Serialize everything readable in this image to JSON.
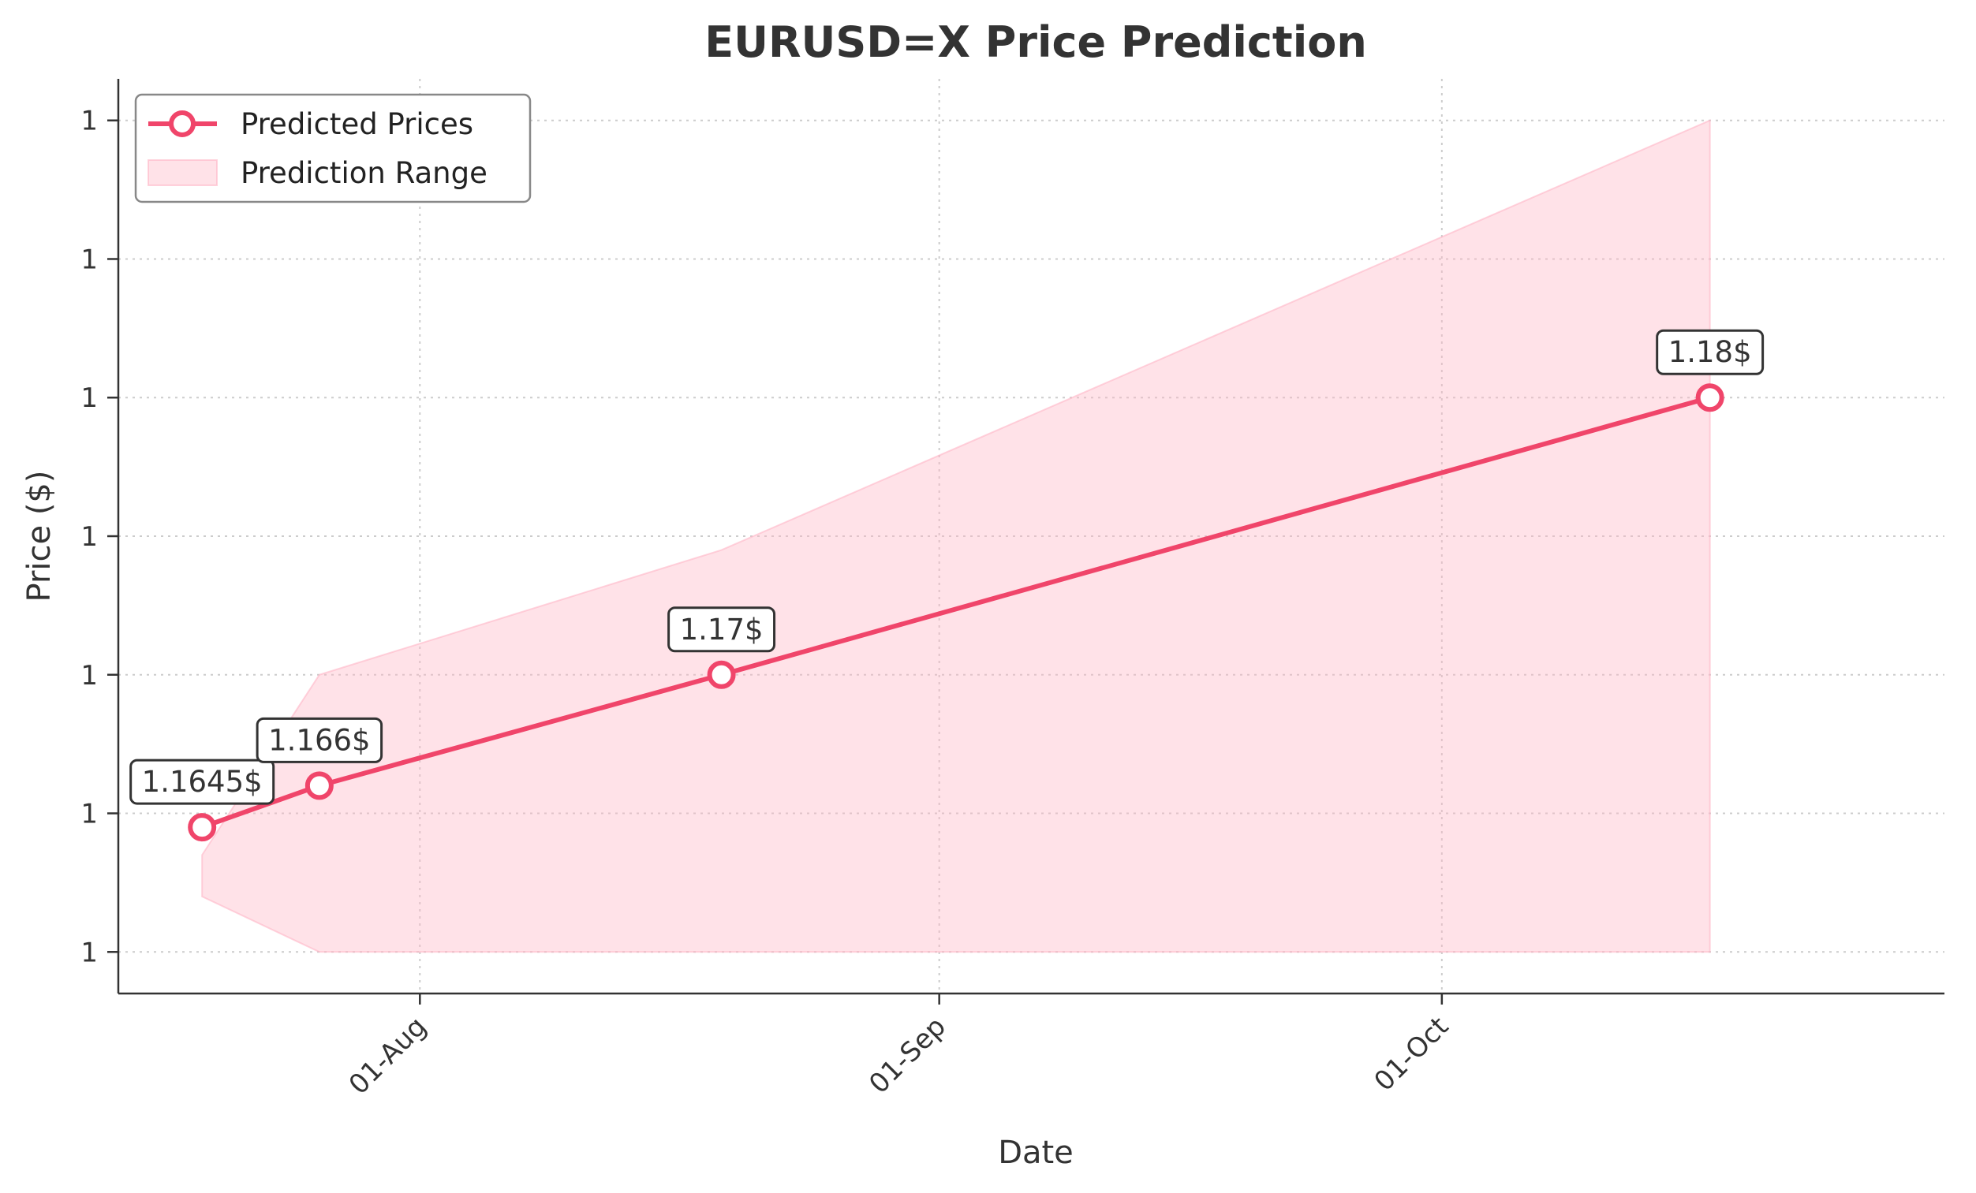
{
  "chart_data": {
    "type": "line",
    "title": "EURUSD=X Price Prediction",
    "xlabel": "Date",
    "ylabel": "Price ($)",
    "x_ticks": [
      {
        "date": "2025-08-01",
        "label": "01-Aug"
      },
      {
        "date": "2025-09-01",
        "label": "01-Sep"
      },
      {
        "date": "2025-10-01",
        "label": "01-Oct"
      }
    ],
    "xlim": [
      "2025-07-14",
      "2025-10-31"
    ],
    "y_ticks": [
      1.16,
      1.165,
      1.17,
      1.175,
      1.18,
      1.185,
      1.19
    ],
    "y_tick_labels": [
      "1",
      "1",
      "1",
      "1",
      "1",
      "1",
      "1"
    ],
    "ylim": [
      1.1585,
      1.1915
    ],
    "grid": true,
    "legend_position": "upper-left",
    "series": [
      {
        "name": "Predicted Prices",
        "color": "#f0456a",
        "dates": [
          "2025-07-19",
          "2025-07-26",
          "2025-08-19",
          "2025-10-17"
        ],
        "values": [
          1.1645,
          1.166,
          1.17,
          1.18
        ],
        "labels": [
          "1.1645$",
          "1.166$",
          "1.17$",
          "1.18$"
        ]
      }
    ],
    "range": {
      "name": "Prediction Range",
      "color": "#ffb6c6",
      "dates": [
        "2025-07-19",
        "2025-07-26",
        "2025-08-19",
        "2025-10-17"
      ],
      "upper": [
        1.1635,
        1.17,
        1.1745,
        1.19
      ],
      "lower": [
        1.162,
        1.16,
        1.16,
        1.16
      ]
    }
  }
}
